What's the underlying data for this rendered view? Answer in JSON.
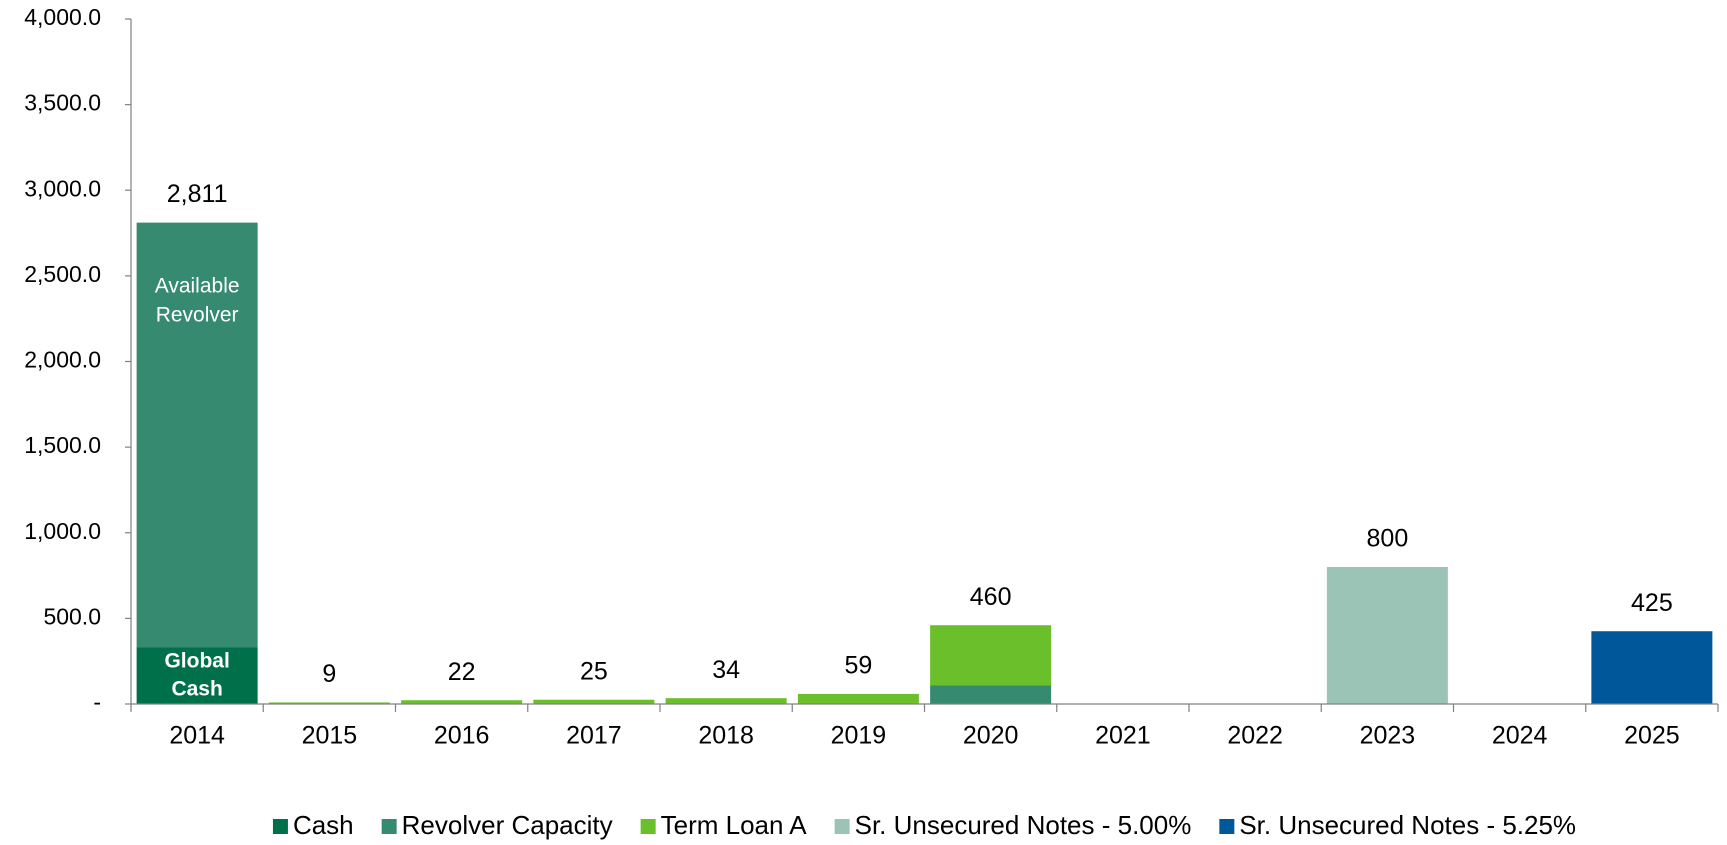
{
  "chart_data": {
    "type": "stacked_bar",
    "categories": [
      "2014",
      "2015",
      "2016",
      "2017",
      "2018",
      "2019",
      "2020",
      "2021",
      "2022",
      "2023",
      "2024",
      "2025"
    ],
    "series": [
      {
        "name": "Cash",
        "color": "#00704a",
        "values": [
          330,
          null,
          null,
          null,
          null,
          null,
          null,
          null,
          null,
          null,
          null,
          null
        ]
      },
      {
        "name": "Revolver Capacity",
        "color": "#358a6f",
        "values": [
          2481,
          null,
          null,
          null,
          null,
          null,
          110,
          null,
          null,
          null,
          null,
          null
        ]
      },
      {
        "name": "Term Loan A",
        "color": "#6abf2b",
        "values": [
          null,
          9,
          22,
          25,
          34,
          59,
          350,
          null,
          null,
          null,
          null,
          null
        ]
      },
      {
        "name": "Sr. Unsecured Notes - 5.00%",
        "color": "#9bc4b6",
        "values": [
          null,
          null,
          null,
          null,
          null,
          null,
          null,
          null,
          null,
          800,
          null,
          null
        ]
      },
      {
        "name": "Sr. Unsecured Notes - 5.25%",
        "color": "#00589a",
        "values": [
          null,
          null,
          null,
          null,
          null,
          null,
          null,
          null,
          null,
          null,
          null,
          425
        ]
      }
    ],
    "totals": [
      2811,
      9,
      22,
      25,
      34,
      59,
      460,
      null,
      null,
      800,
      null,
      425
    ],
    "total_labels": [
      "2,811",
      "9",
      "22",
      "25",
      "34",
      "59",
      "460",
      null,
      null,
      "800",
      null,
      "425"
    ],
    "annotations": [
      {
        "lines": [
          "Available",
          "Revolver"
        ]
      },
      {
        "lines": [
          "Global",
          "Cash"
        ]
      }
    ],
    "ylim": [
      0,
      4000
    ],
    "yticks": [
      {
        "value": 0,
        "label": "-"
      },
      {
        "value": 500,
        "label": "500.0"
      },
      {
        "value": 1000,
        "label": "1,000.0"
      },
      {
        "value": 1500,
        "label": "1,500.0"
      },
      {
        "value": 2000,
        "label": "2,000.0"
      },
      {
        "value": 2500,
        "label": "2,500.0"
      },
      {
        "value": 3000,
        "label": "3,000.0"
      },
      {
        "value": 3500,
        "label": "3,500.0"
      },
      {
        "value": 4000,
        "label": "4,000.0"
      }
    ],
    "legend": "bottom"
  }
}
